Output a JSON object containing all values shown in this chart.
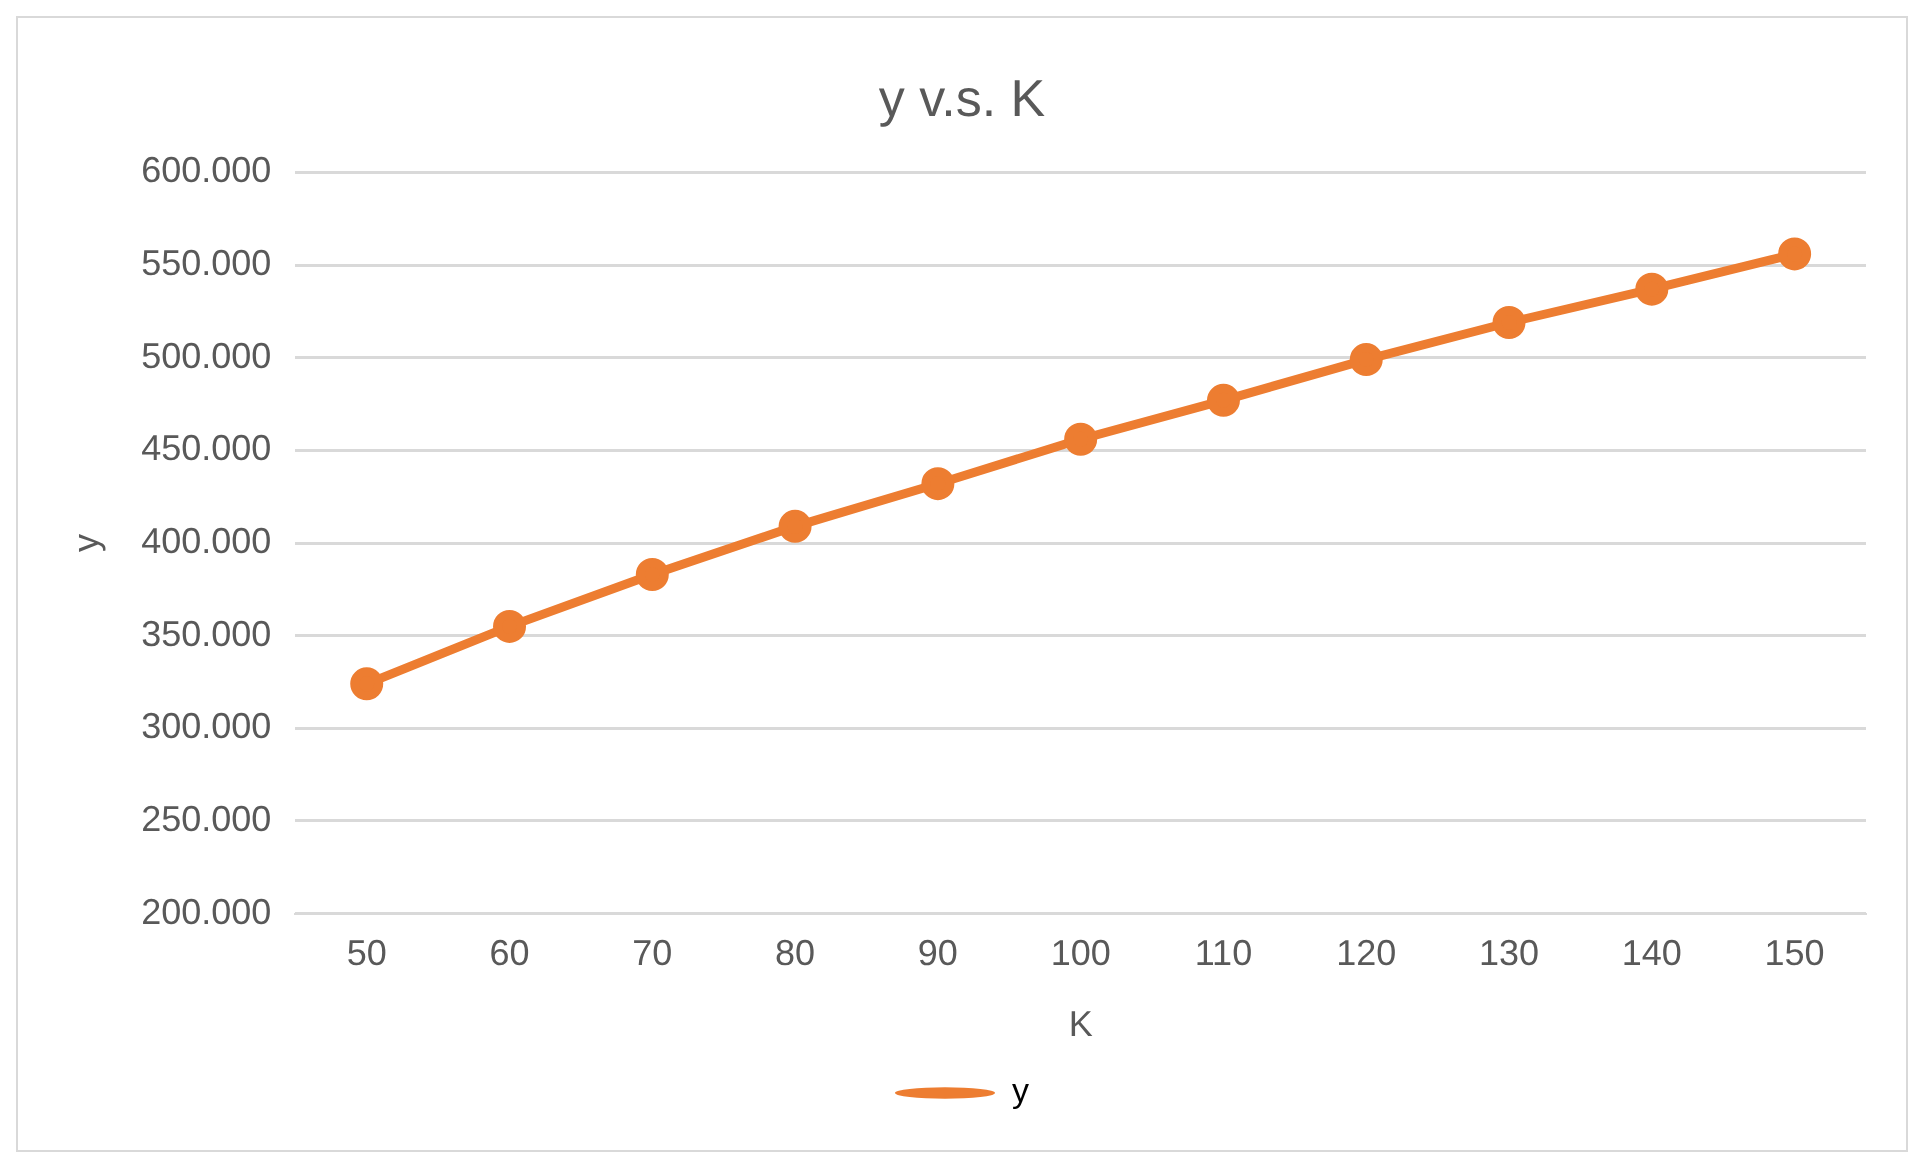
{
  "chart_data": {
    "type": "line",
    "title": "y v.s. K",
    "xlabel": "K",
    "ylabel": "y",
    "categories": [
      "50",
      "60",
      "70",
      "80",
      "90",
      "100",
      "110",
      "120",
      "130",
      "140",
      "150"
    ],
    "series": [
      {
        "name": "y",
        "color": "#ed7d31",
        "values": [
          324000,
          355000,
          383000,
          409000,
          432000,
          456000,
          477000,
          499000,
          519000,
          537000,
          556000
        ]
      }
    ],
    "ylim": [
      200000,
      600000
    ],
    "yticks": [
      {
        "value": 200000,
        "label": "200.000"
      },
      {
        "value": 250000,
        "label": "250.000"
      },
      {
        "value": 300000,
        "label": "300.000"
      },
      {
        "value": 350000,
        "label": "350.000"
      },
      {
        "value": 400000,
        "label": "400.000"
      },
      {
        "value": 450000,
        "label": "450.000"
      },
      {
        "value": 500000,
        "label": "500.000"
      },
      {
        "value": 550000,
        "label": "550.000"
      },
      {
        "value": 600000,
        "label": "600.000"
      }
    ],
    "grid": "y",
    "legend": "bottom",
    "marker": "circle",
    "line_style": "solid"
  }
}
